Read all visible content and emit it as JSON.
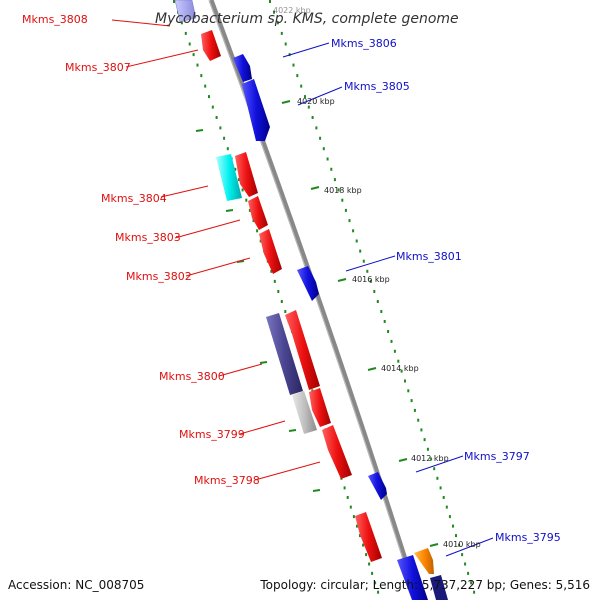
{
  "title": "Mycobacterium sp. KMS, complete genome",
  "footer": {
    "accession": "Accession: NC_008705",
    "summary": "Topology: circular; Length: 5,737,227 bp; Genes: 5,516"
  },
  "ticks": [
    "4022 kbp",
    "4020 kbp",
    "4018 kbp",
    "4016 kbp",
    "4014 kbp",
    "4012 kbp",
    "4010 kbp"
  ],
  "genes": [
    {
      "label": "Mkms_3808",
      "color": "#e01010"
    },
    {
      "label": "Mkms_3807",
      "color": "#e01010"
    },
    {
      "label": "Mkms_3806",
      "color": "#1010c8"
    },
    {
      "label": "Mkms_3805",
      "color": "#1010c8"
    },
    {
      "label": "Mkms_3804",
      "color": "#e01010"
    },
    {
      "label": "Mkms_3803",
      "color": "#e01010"
    },
    {
      "label": "Mkms_3802",
      "color": "#e01010"
    },
    {
      "label": "Mkms_3801",
      "color": "#1010c8"
    },
    {
      "label": "Mkms_3800",
      "color": "#e01010"
    },
    {
      "label": "Mkms_3799",
      "color": "#e01010"
    },
    {
      "label": "Mkms_3798",
      "color": "#e01010"
    },
    {
      "label": "Mkms_3797",
      "color": "#1010c8"
    },
    {
      "label": "Mkms_3795",
      "color": "#1010c8"
    }
  ],
  "colors": {
    "forward": "#ee1111",
    "reverse": "#1111dd",
    "cyan": "#00f0f0",
    "purple": "#4a4590",
    "gray": "#c0c0c0",
    "orange": "#ff8800",
    "backbone": "#888888",
    "dots": "#228822"
  }
}
